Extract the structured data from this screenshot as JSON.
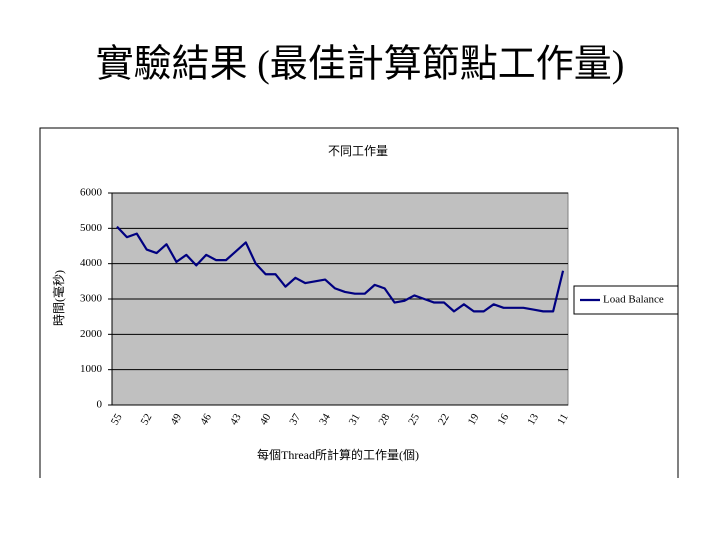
{
  "slide_title": "實驗結果 (最佳計算節點工作量)",
  "chart_data": {
    "type": "line",
    "title": "不同工作量",
    "y_label": "時間(毫秒)",
    "x_label": "每個Thread所計算的工作量(個)",
    "categories": [
      "55",
      null,
      null,
      "52",
      null,
      null,
      "49",
      null,
      null,
      "46",
      null,
      null,
      "43",
      null,
      null,
      "40",
      null,
      null,
      "37",
      null,
      null,
      "34",
      null,
      null,
      "31",
      null,
      null,
      "28",
      null,
      null,
      "25",
      null,
      null,
      "22",
      null,
      null,
      "19",
      null,
      null,
      "16",
      null,
      null,
      "13",
      null,
      null,
      "11"
    ],
    "series": [
      {
        "name": "Load Balance",
        "color": "#000080",
        "values": [
          5050,
          4750,
          4850,
          4400,
          4300,
          4550,
          4050,
          4250,
          3950,
          4250,
          4100,
          4100,
          4350,
          4600,
          4000,
          3700,
          3700,
          3350,
          3600,
          3450,
          3500,
          3550,
          3300,
          3200,
          3150,
          3150,
          3400,
          3300,
          2900,
          2950,
          3100,
          3000,
          2900,
          2900,
          2650,
          2850,
          2650,
          2650,
          2850,
          2750,
          2750,
          2750,
          2700,
          2650,
          2650,
          3800
        ]
      }
    ],
    "ylim": [
      0,
      6000
    ],
    "yticks": [
      0,
      1000,
      2000,
      3000,
      4000,
      5000,
      6000
    ],
    "grid": true,
    "plot_color": "#c0c0c0",
    "legend": "right"
  }
}
